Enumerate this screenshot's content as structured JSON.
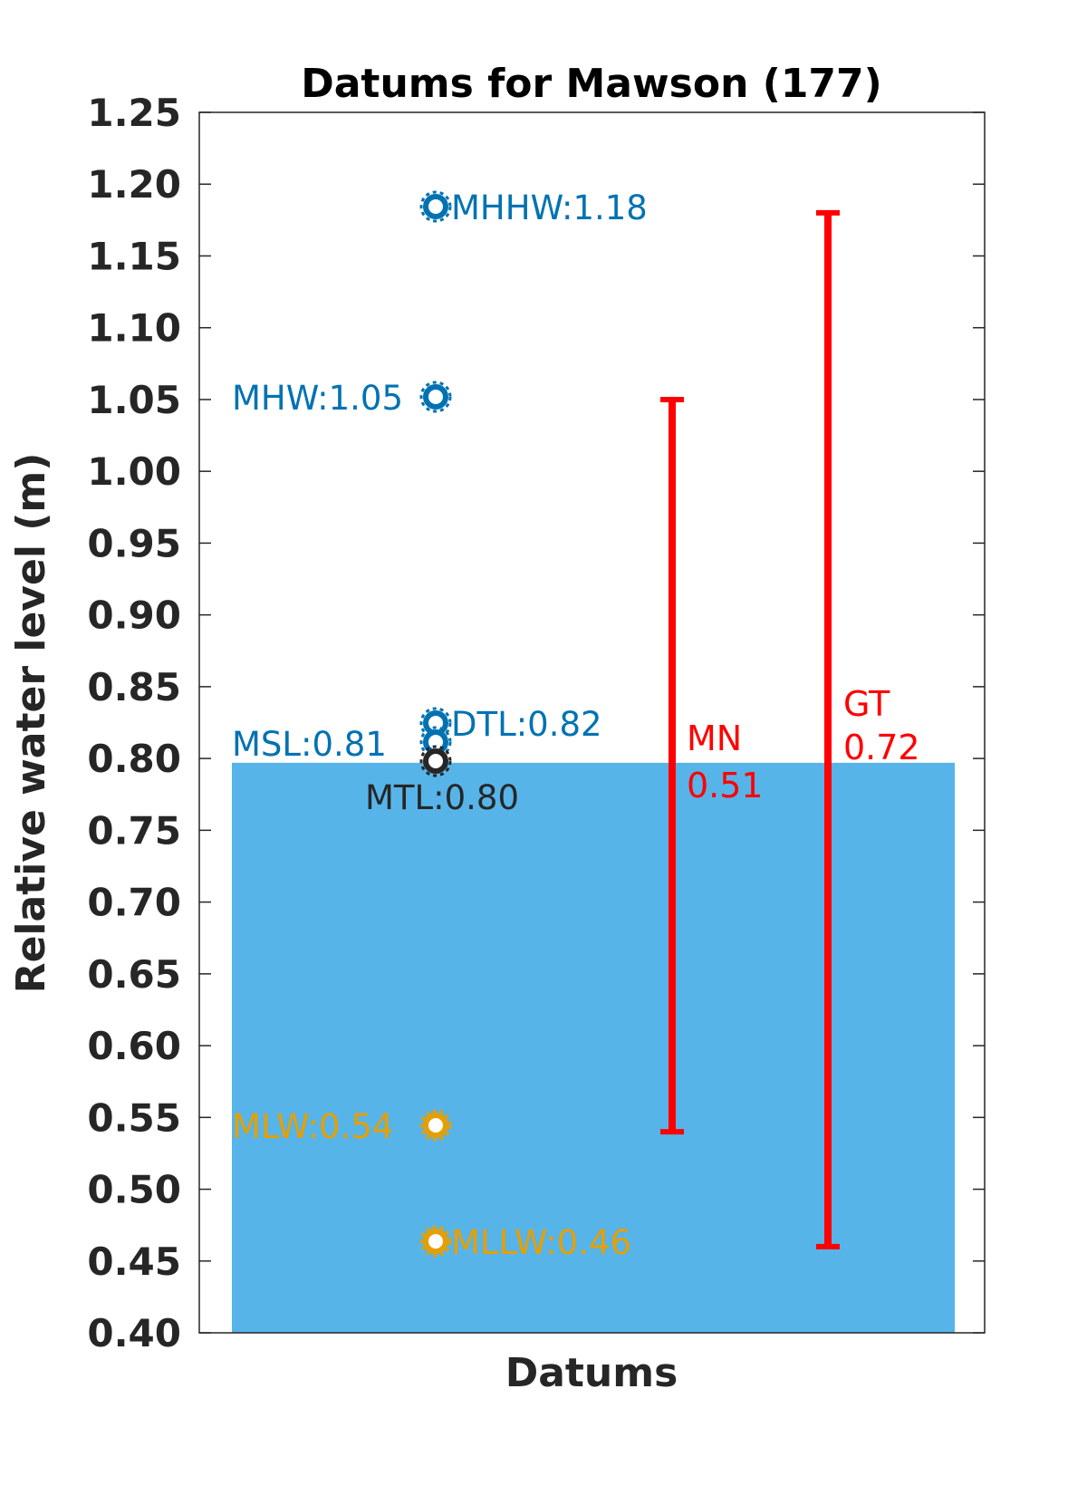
{
  "chart_data": {
    "type": "bar",
    "title": "Datums for Mawson (177)",
    "xlabel": "Datums",
    "ylabel": "Relative water level (m)",
    "ylim": [
      0.4,
      1.25
    ],
    "yticks": [
      "0.40",
      "0.45",
      "0.50",
      "0.55",
      "0.60",
      "0.65",
      "0.70",
      "0.75",
      "0.80",
      "0.85",
      "0.90",
      "0.95",
      "1.00",
      "1.05",
      "1.10",
      "1.15",
      "1.20",
      "1.25"
    ],
    "grid": false,
    "bar": {
      "value": 0.797,
      "color": "#56B4E9"
    },
    "datums": [
      {
        "name": "MHHW",
        "value": 1.18,
        "label": "MHHW:1.18",
        "color": "#0072B2",
        "side": "right"
      },
      {
        "name": "MHW",
        "value": 1.05,
        "label": "MHW:1.05",
        "color": "#0072B2",
        "side": "left"
      },
      {
        "name": "DTL",
        "value": 0.82,
        "label": "DTL:0.82",
        "color": "#0072B2",
        "side": "right"
      },
      {
        "name": "MSL",
        "value": 0.81,
        "label": "MSL:0.81",
        "color": "#0072B2",
        "side": "left"
      },
      {
        "name": "MTL",
        "value": 0.8,
        "label": "MTL:0.80",
        "color": "#262626",
        "side": "below"
      },
      {
        "name": "MLW",
        "value": 0.54,
        "label": "MLW:0.54",
        "color": "#E69F00",
        "side": "left"
      },
      {
        "name": "MLLW",
        "value": 0.46,
        "label": "MLLW:0.46",
        "color": "#E69F00",
        "side": "right"
      }
    ],
    "ranges": [
      {
        "name": "MN",
        "value_label": "0.51",
        "low": 0.54,
        "high": 1.05,
        "color": "#FF0000"
      },
      {
        "name": "GT",
        "value_label": "0.72",
        "low": 0.46,
        "high": 1.18,
        "color": "#FF0000"
      }
    ]
  }
}
